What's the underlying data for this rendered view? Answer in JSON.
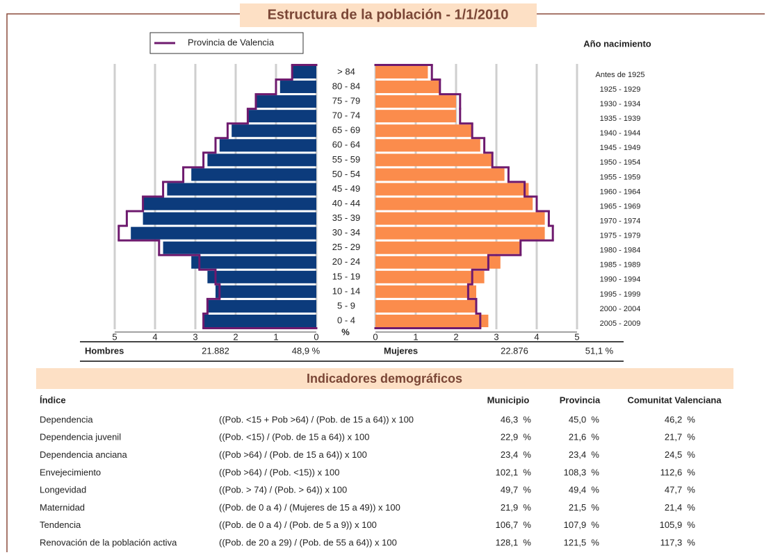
{
  "chart_data": {
    "type": "pyramid",
    "title": "Estructura de la población - 1/1/2010",
    "right_label": "Año nacimiento",
    "xlabel": "%",
    "categories": [
      "0 - 4",
      "5 - 9",
      "10 - 14",
      "15 - 19",
      "20 - 24",
      "25 - 29",
      "30 - 34",
      "35 - 39",
      "40 - 44",
      "45 - 49",
      "50 - 54",
      "55 - 59",
      "60 - 64",
      "65 - 69",
      "70 - 74",
      "75 - 79",
      "80 - 84",
      "> 84"
    ],
    "birth_years": [
      "2005 - 2009",
      "2000 - 2004",
      "1995 - 1999",
      "1990 - 1994",
      "1985 - 1989",
      "1980 - 1984",
      "1975 - 1979",
      "1970 - 1974",
      "1965 - 1969",
      "1960 - 1964",
      "1955 - 1959",
      "1950 - 1954",
      "1945 - 1949",
      "1940 - 1944",
      "1935 - 1939",
      "1930 - 1934",
      "1925 - 1929",
      "Antes de 1925"
    ],
    "series": [
      {
        "name": "Hombres",
        "color": "#0c3b7c",
        "side": "left",
        "values": [
          2.8,
          2.7,
          2.5,
          2.7,
          3.1,
          3.8,
          4.6,
          4.3,
          4.3,
          3.7,
          3.1,
          2.7,
          2.4,
          2.1,
          1.7,
          1.5,
          0.9,
          0.6
        ]
      },
      {
        "name": "Mujeres",
        "color": "#fb8c4c",
        "side": "right",
        "values": [
          2.8,
          2.5,
          2.5,
          2.7,
          3.1,
          3.6,
          4.2,
          4.2,
          3.9,
          3.8,
          3.2,
          2.9,
          2.6,
          2.4,
          2.0,
          2.0,
          1.6,
          1.3
        ]
      },
      {
        "name": "Provincia de Valencia",
        "color": "#6e1a6e",
        "values_left": [
          2.8,
          2.7,
          2.4,
          2.5,
          2.9,
          3.9,
          4.9,
          4.7,
          4.3,
          3.8,
          3.3,
          2.8,
          2.5,
          2.2,
          1.7,
          1.5,
          1.0,
          0.6
        ],
        "values_right": [
          2.6,
          2.5,
          2.3,
          2.4,
          2.8,
          3.6,
          4.4,
          4.3,
          4.0,
          3.7,
          3.3,
          2.9,
          2.7,
          2.4,
          2.1,
          2.1,
          1.6,
          1.4
        ]
      }
    ],
    "xlim": [
      0,
      5
    ],
    "xticks": [
      0,
      1,
      2,
      3,
      4,
      5
    ],
    "grid": true,
    "summary": {
      "men_count": "21.882",
      "men_pct": "48,9 %",
      "women_count": "22.876",
      "women_pct": "51,1 %"
    }
  },
  "table": {
    "title": "Indicadores demográficos",
    "header": [
      "Índice",
      "Municipio",
      "Provincia",
      "Comunitat Valenciana"
    ],
    "rows": [
      [
        "Dependencia",
        "((Pob. <15 + Pob >64) / (Pob. de 15 a 64)) x 100",
        "46,3  %",
        "45,0  %",
        "46,2  %"
      ],
      [
        "Dependencia juvenil",
        "((Pob. <15) / (Pob. de 15 a 64)) x 100",
        "22,9  %",
        "21,6  %",
        "21,7  %"
      ],
      [
        "Dependencia anciana",
        "((Pob >64) / (Pob. de 15 a 64)) x 100",
        "23,4  %",
        "23,4  %",
        "24,5  %"
      ],
      [
        "Envejecimiento",
        "((Pob >64) / (Pob. <15)) x 100",
        "102,1  %",
        "108,3  %",
        "112,6  %"
      ],
      [
        "Longevidad",
        "((Pob. > 74) / (Pob. > 64)) x 100",
        "49,7  %",
        "49,4  %",
        "47,7  %"
      ],
      [
        "Maternidad",
        "((Pob. de 0 a 4) / (Mujeres de 15 a 49)) x 100",
        "21,9  %",
        "21,5  %",
        "21,4  %"
      ],
      [
        "Tendencia",
        "((Pob. de 0 a 4) / (Pob. de 5 a 9)) x 100",
        "106,7  %",
        "107,9  %",
        "105,9  %"
      ],
      [
        "Renovación de la población activa",
        "((Pob. de 20 a 29) / (Pob. de 55 a 64)) x 100",
        "128,1  %",
        "121,5  %",
        "117,3  %"
      ]
    ]
  }
}
